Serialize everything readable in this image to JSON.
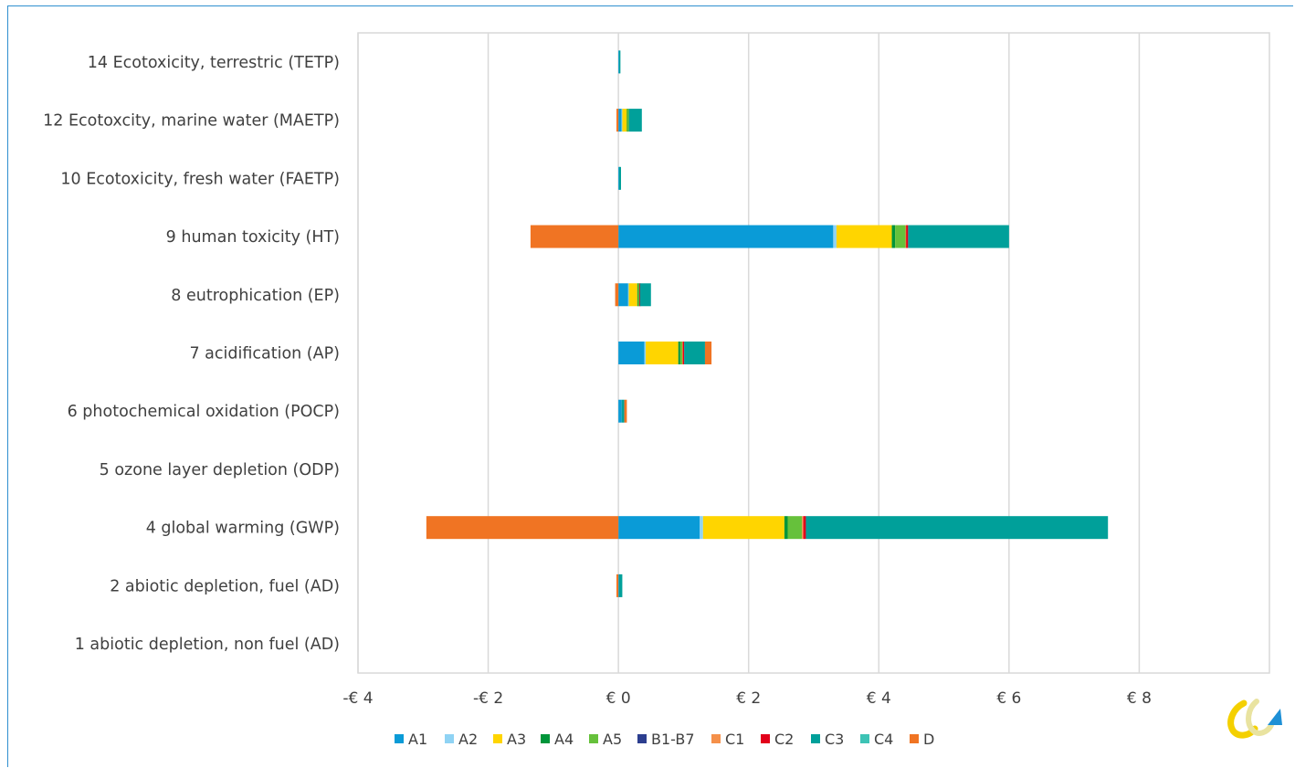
{
  "chart_data": {
    "type": "bar",
    "orientation": "horizontal",
    "stacked": true,
    "title": "",
    "xlabel": "",
    "ylabel": "",
    "xlim": [
      -4,
      10
    ],
    "x_ticks": [
      -4,
      -2,
      0,
      2,
      4,
      6,
      8
    ],
    "x_tick_labels": [
      "-€ 4",
      "-€ 2",
      "€ 0",
      "€ 2",
      "€ 4",
      "€ 6",
      "€ 8"
    ],
    "grid": true,
    "legend_position": "bottom",
    "categories": [
      "14 Ecotoxicity, terrestric (TETP)",
      "12 Ecotoxcity, marine water (MAETP)",
      "10 Ecotoxicity, fresh water (FAETP)",
      "9 human toxicity (HT)",
      "8 eutrophication (EP)",
      "7 acidification (AP)",
      "6 photochemical oxidation (POCP)",
      "5 ozone layer depletion (ODP)",
      "4 global warming (GWP)",
      "2 abiotic depletion, fuel (AD)",
      "1 abiotic depletion, non fuel (AD)"
    ],
    "series": [
      {
        "name": "A1",
        "color": "#0a9bd7",
        "values": [
          0.01,
          0.05,
          0.01,
          3.3,
          0.15,
          0.4,
          0.05,
          0.0,
          1.25,
          0.01,
          0.0
        ]
      },
      {
        "name": "A2",
        "color": "#8fd3f4",
        "values": [
          0.0,
          0.01,
          0.0,
          0.05,
          0.01,
          0.02,
          0.0,
          0.0,
          0.05,
          0.0,
          0.0
        ]
      },
      {
        "name": "A3",
        "color": "#ffd500",
        "values": [
          0.0,
          0.07,
          0.0,
          0.85,
          0.13,
          0.5,
          0.0,
          0.0,
          1.25,
          0.0,
          0.0
        ]
      },
      {
        "name": "A4",
        "color": "#00953a",
        "values": [
          0.0,
          0.01,
          0.0,
          0.05,
          0.01,
          0.03,
          0.0,
          0.0,
          0.05,
          0.0,
          0.0
        ]
      },
      {
        "name": "A5",
        "color": "#66c13b",
        "values": [
          0.0,
          0.02,
          0.0,
          0.16,
          0.02,
          0.03,
          0.0,
          0.0,
          0.22,
          0.0,
          0.0
        ]
      },
      {
        "name": "B1-B7",
        "color": "#2c3e8f",
        "values": [
          0.0,
          0.0,
          0.0,
          0.0,
          0.0,
          0.0,
          0.0,
          0.0,
          0.0,
          0.0,
          0.0
        ]
      },
      {
        "name": "C1",
        "color": "#f5904a",
        "values": [
          0.0,
          0.0,
          0.0,
          0.01,
          0.0,
          0.01,
          0.0,
          0.0,
          0.02,
          0.0,
          0.0
        ]
      },
      {
        "name": "C2",
        "color": "#e2001a",
        "values": [
          0.0,
          0.0,
          0.0,
          0.03,
          0.01,
          0.02,
          0.0,
          0.0,
          0.04,
          0.0,
          0.0
        ]
      },
      {
        "name": "C3",
        "color": "#00a09a",
        "values": [
          0.02,
          0.2,
          0.03,
          1.55,
          0.17,
          0.32,
          0.04,
          0.0,
          4.64,
          0.05,
          0.0
        ]
      },
      {
        "name": "C4",
        "color": "#3dc3b5",
        "values": [
          0.0,
          0.0,
          0.0,
          0.0,
          0.0,
          0.0,
          0.0,
          0.0,
          0.0,
          0.0,
          0.0
        ]
      },
      {
        "name": "D",
        "color": "#f07423",
        "values": [
          0.0,
          -0.03,
          0.0,
          -1.35,
          -0.05,
          0.1,
          0.04,
          0.0,
          -2.95,
          -0.03,
          0.0
        ]
      }
    ]
  }
}
